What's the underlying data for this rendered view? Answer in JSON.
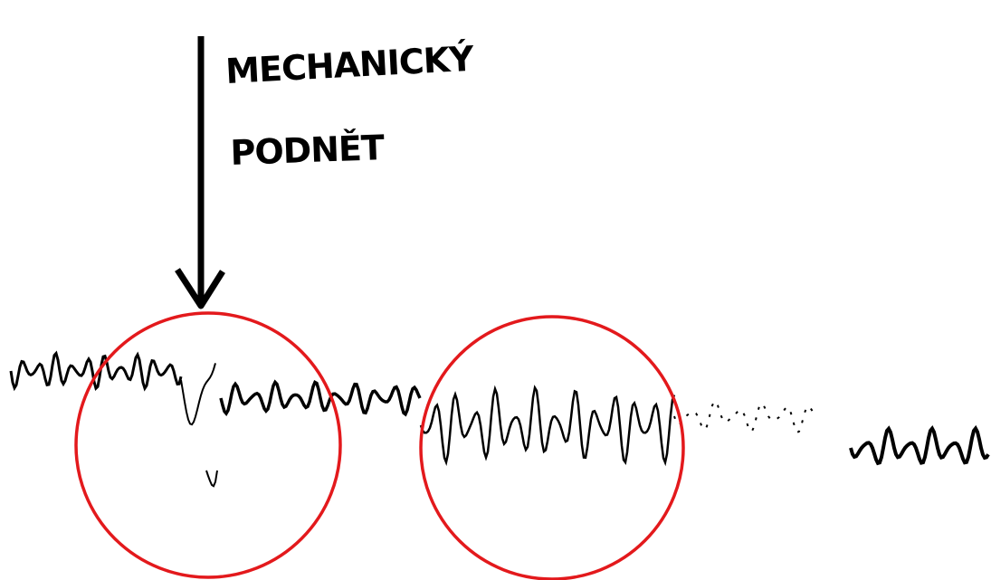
{
  "annotation": {
    "line1": "MECHANICKÝ",
    "line2": "PODNĚT"
  }
}
